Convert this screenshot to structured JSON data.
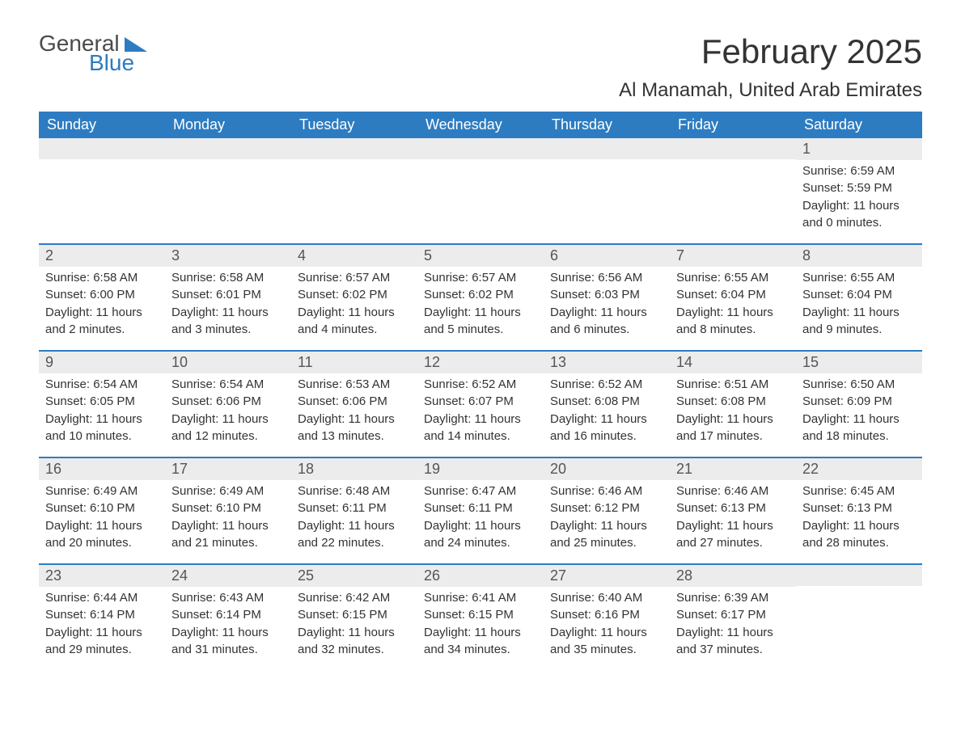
{
  "logo": {
    "word1": "General",
    "word2": "Blue"
  },
  "title": "February 2025",
  "location": "Al Manamah, United Arab Emirates",
  "colors": {
    "header_bg": "#2d7cc1",
    "header_text": "#ffffff",
    "daynum_bg": "#ececec",
    "border": "#2d7cc1",
    "text": "#333333",
    "logo_gray": "#4a4a4a",
    "logo_blue": "#2d7cc1"
  },
  "weekdays": [
    "Sunday",
    "Monday",
    "Tuesday",
    "Wednesday",
    "Thursday",
    "Friday",
    "Saturday"
  ],
  "weeks": [
    [
      null,
      null,
      null,
      null,
      null,
      null,
      {
        "n": "1",
        "sunrise": "Sunrise: 6:59 AM",
        "sunset": "Sunset: 5:59 PM",
        "day1": "Daylight: 11 hours",
        "day2": "and 0 minutes."
      }
    ],
    [
      {
        "n": "2",
        "sunrise": "Sunrise: 6:58 AM",
        "sunset": "Sunset: 6:00 PM",
        "day1": "Daylight: 11 hours",
        "day2": "and 2 minutes."
      },
      {
        "n": "3",
        "sunrise": "Sunrise: 6:58 AM",
        "sunset": "Sunset: 6:01 PM",
        "day1": "Daylight: 11 hours",
        "day2": "and 3 minutes."
      },
      {
        "n": "4",
        "sunrise": "Sunrise: 6:57 AM",
        "sunset": "Sunset: 6:02 PM",
        "day1": "Daylight: 11 hours",
        "day2": "and 4 minutes."
      },
      {
        "n": "5",
        "sunrise": "Sunrise: 6:57 AM",
        "sunset": "Sunset: 6:02 PM",
        "day1": "Daylight: 11 hours",
        "day2": "and 5 minutes."
      },
      {
        "n": "6",
        "sunrise": "Sunrise: 6:56 AM",
        "sunset": "Sunset: 6:03 PM",
        "day1": "Daylight: 11 hours",
        "day2": "and 6 minutes."
      },
      {
        "n": "7",
        "sunrise": "Sunrise: 6:55 AM",
        "sunset": "Sunset: 6:04 PM",
        "day1": "Daylight: 11 hours",
        "day2": "and 8 minutes."
      },
      {
        "n": "8",
        "sunrise": "Sunrise: 6:55 AM",
        "sunset": "Sunset: 6:04 PM",
        "day1": "Daylight: 11 hours",
        "day2": "and 9 minutes."
      }
    ],
    [
      {
        "n": "9",
        "sunrise": "Sunrise: 6:54 AM",
        "sunset": "Sunset: 6:05 PM",
        "day1": "Daylight: 11 hours",
        "day2": "and 10 minutes."
      },
      {
        "n": "10",
        "sunrise": "Sunrise: 6:54 AM",
        "sunset": "Sunset: 6:06 PM",
        "day1": "Daylight: 11 hours",
        "day2": "and 12 minutes."
      },
      {
        "n": "11",
        "sunrise": "Sunrise: 6:53 AM",
        "sunset": "Sunset: 6:06 PM",
        "day1": "Daylight: 11 hours",
        "day2": "and 13 minutes."
      },
      {
        "n": "12",
        "sunrise": "Sunrise: 6:52 AM",
        "sunset": "Sunset: 6:07 PM",
        "day1": "Daylight: 11 hours",
        "day2": "and 14 minutes."
      },
      {
        "n": "13",
        "sunrise": "Sunrise: 6:52 AM",
        "sunset": "Sunset: 6:08 PM",
        "day1": "Daylight: 11 hours",
        "day2": "and 16 minutes."
      },
      {
        "n": "14",
        "sunrise": "Sunrise: 6:51 AM",
        "sunset": "Sunset: 6:08 PM",
        "day1": "Daylight: 11 hours",
        "day2": "and 17 minutes."
      },
      {
        "n": "15",
        "sunrise": "Sunrise: 6:50 AM",
        "sunset": "Sunset: 6:09 PM",
        "day1": "Daylight: 11 hours",
        "day2": "and 18 minutes."
      }
    ],
    [
      {
        "n": "16",
        "sunrise": "Sunrise: 6:49 AM",
        "sunset": "Sunset: 6:10 PM",
        "day1": "Daylight: 11 hours",
        "day2": "and 20 minutes."
      },
      {
        "n": "17",
        "sunrise": "Sunrise: 6:49 AM",
        "sunset": "Sunset: 6:10 PM",
        "day1": "Daylight: 11 hours",
        "day2": "and 21 minutes."
      },
      {
        "n": "18",
        "sunrise": "Sunrise: 6:48 AM",
        "sunset": "Sunset: 6:11 PM",
        "day1": "Daylight: 11 hours",
        "day2": "and 22 minutes."
      },
      {
        "n": "19",
        "sunrise": "Sunrise: 6:47 AM",
        "sunset": "Sunset: 6:11 PM",
        "day1": "Daylight: 11 hours",
        "day2": "and 24 minutes."
      },
      {
        "n": "20",
        "sunrise": "Sunrise: 6:46 AM",
        "sunset": "Sunset: 6:12 PM",
        "day1": "Daylight: 11 hours",
        "day2": "and 25 minutes."
      },
      {
        "n": "21",
        "sunrise": "Sunrise: 6:46 AM",
        "sunset": "Sunset: 6:13 PM",
        "day1": "Daylight: 11 hours",
        "day2": "and 27 minutes."
      },
      {
        "n": "22",
        "sunrise": "Sunrise: 6:45 AM",
        "sunset": "Sunset: 6:13 PM",
        "day1": "Daylight: 11 hours",
        "day2": "and 28 minutes."
      }
    ],
    [
      {
        "n": "23",
        "sunrise": "Sunrise: 6:44 AM",
        "sunset": "Sunset: 6:14 PM",
        "day1": "Daylight: 11 hours",
        "day2": "and 29 minutes."
      },
      {
        "n": "24",
        "sunrise": "Sunrise: 6:43 AM",
        "sunset": "Sunset: 6:14 PM",
        "day1": "Daylight: 11 hours",
        "day2": "and 31 minutes."
      },
      {
        "n": "25",
        "sunrise": "Sunrise: 6:42 AM",
        "sunset": "Sunset: 6:15 PM",
        "day1": "Daylight: 11 hours",
        "day2": "and 32 minutes."
      },
      {
        "n": "26",
        "sunrise": "Sunrise: 6:41 AM",
        "sunset": "Sunset: 6:15 PM",
        "day1": "Daylight: 11 hours",
        "day2": "and 34 minutes."
      },
      {
        "n": "27",
        "sunrise": "Sunrise: 6:40 AM",
        "sunset": "Sunset: 6:16 PM",
        "day1": "Daylight: 11 hours",
        "day2": "and 35 minutes."
      },
      {
        "n": "28",
        "sunrise": "Sunrise: 6:39 AM",
        "sunset": "Sunset: 6:17 PM",
        "day1": "Daylight: 11 hours",
        "day2": "and 37 minutes."
      },
      null
    ]
  ]
}
